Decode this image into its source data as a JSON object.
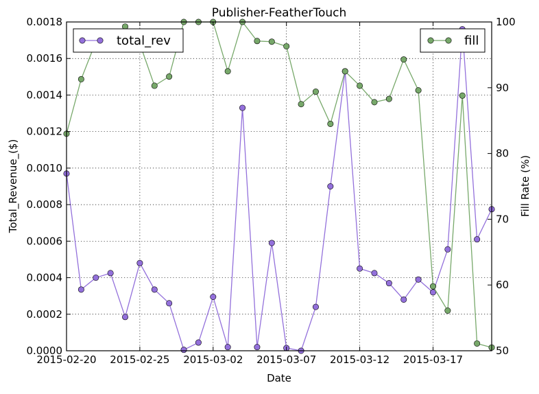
{
  "chart_data": {
    "type": "line",
    "title": "Publisher-FeatherTouch",
    "xlabel": "Date",
    "ylabel_left": "Total_Revenue_($)",
    "ylabel_right": "Fill Rate (%)",
    "x_tick_labels": [
      "2015-02-20",
      "2015-02-25",
      "2015-03-02",
      "2015-03-07",
      "2015-03-12",
      "2015-03-17"
    ],
    "y_left_tick_labels": [
      "0.0000",
      "0.0002",
      "0.0004",
      "0.0006",
      "0.0008",
      "0.0010",
      "0.0012",
      "0.0014",
      "0.0016",
      "0.0018"
    ],
    "y_right_tick_labels": [
      "50",
      "60",
      "70",
      "80",
      "90",
      "100"
    ],
    "xlim": [
      "2015-02-20",
      "2015-03-21"
    ],
    "ylim_left": [
      0,
      0.0018
    ],
    "ylim_right": [
      50,
      100
    ],
    "grid": true,
    "dates": [
      "2015-02-20",
      "2015-02-21",
      "2015-02-22",
      "2015-02-23",
      "2015-02-24",
      "2015-02-25",
      "2015-02-26",
      "2015-02-27",
      "2015-02-28",
      "2015-03-01",
      "2015-03-02",
      "2015-03-03",
      "2015-03-04",
      "2015-03-05",
      "2015-03-06",
      "2015-03-07",
      "2015-03-08",
      "2015-03-09",
      "2015-03-10",
      "2015-03-11",
      "2015-03-12",
      "2015-03-13",
      "2015-03-14",
      "2015-03-15",
      "2015-03-16",
      "2015-03-17",
      "2015-03-18",
      "2015-03-19",
      "2015-03-20",
      "2015-03-21"
    ],
    "series": [
      {
        "name": "total_rev",
        "axis": "left",
        "color": "#9370db",
        "legend_position": "top-left",
        "values": [
          0.00097,
          0.000335,
          0.0004,
          0.000425,
          0.000185,
          0.00048,
          0.000335,
          0.00026,
          5e-06,
          4.5e-05,
          0.000295,
          2e-05,
          0.00133,
          2e-05,
          0.00059,
          1.5e-05,
          0.0,
          0.00024,
          0.0009,
          0.00153,
          0.00045,
          0.000425,
          0.00037,
          0.00028,
          0.00039,
          0.00032,
          0.000555,
          0.00176,
          0.00061,
          0.000775
        ]
      },
      {
        "name": "fill",
        "axis": "right",
        "color": "#77a86a",
        "legend_position": "top-right",
        "values": [
          83.0,
          91.3,
          97.0,
          97.0,
          99.3,
          96.7,
          90.3,
          91.7,
          100,
          100,
          100,
          92.5,
          100,
          97.1,
          97.0,
          96.3,
          87.5,
          89.4,
          84.5,
          92.5,
          90.3,
          87.8,
          88.3,
          94.3,
          89.6,
          59.8,
          56.1,
          88.8,
          51.1,
          50.5
        ]
      }
    ]
  }
}
